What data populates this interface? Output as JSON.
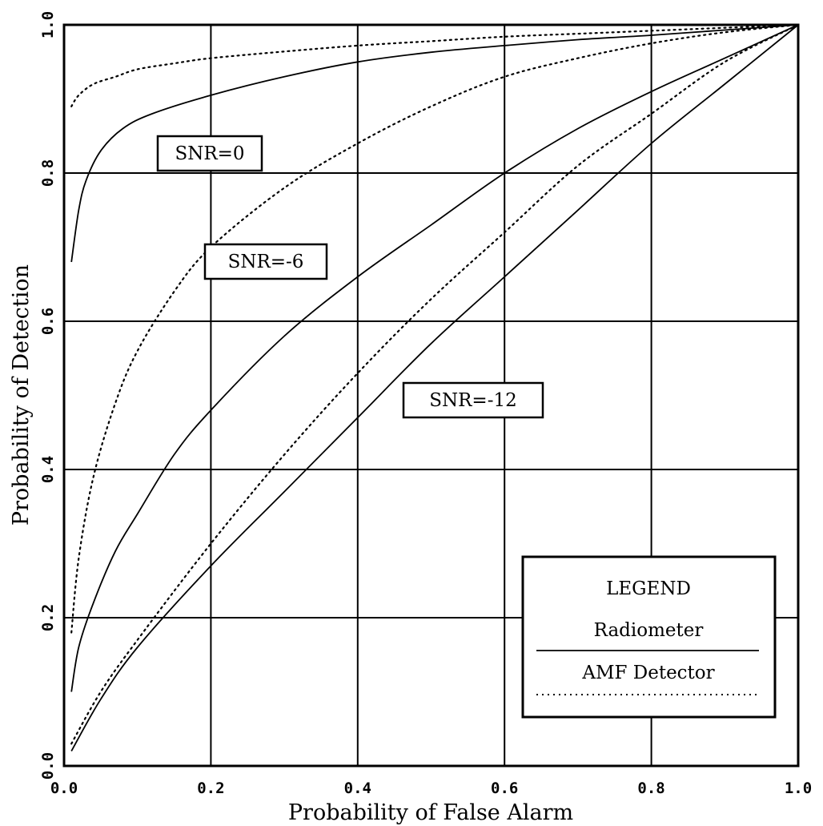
{
  "chart_data": {
    "type": "line",
    "title": "",
    "xlabel": "Probability of False Alarm",
    "ylabel": "Probability of Detection",
    "xlim": [
      0,
      1
    ],
    "ylim": [
      0,
      1
    ],
    "xticks": [
      "0.0",
      "0.2",
      "0.4",
      "0.6",
      "0.8",
      "1.0"
    ],
    "yticks": [
      "0.0",
      "0.2",
      "0.4",
      "0.6",
      "0.8",
      "1.0"
    ],
    "grid": true,
    "legend": {
      "title": "LEGEND",
      "placement": "lower-right",
      "entries": [
        {
          "label": "Radiometer",
          "style": "solid"
        },
        {
          "label": "AMF Detector",
          "style": "dotted"
        }
      ]
    },
    "annotations": [
      "SNR=0",
      "SNR=-6",
      "SNR=-12"
    ],
    "series": [
      {
        "snr": "SNR=0",
        "detector": "Radiometer",
        "style": "solid",
        "x": [
          0.01,
          0.02,
          0.03,
          0.05,
          0.08,
          0.12,
          0.2,
          0.3,
          0.4,
          0.5,
          0.6,
          0.7,
          0.8,
          0.9,
          1.0
        ],
        "y": [
          0.68,
          0.75,
          0.79,
          0.83,
          0.86,
          0.88,
          0.905,
          0.93,
          0.95,
          0.963,
          0.972,
          0.98,
          0.986,
          0.993,
          1.0
        ]
      },
      {
        "snr": "SNR=0",
        "detector": "AMF Detector",
        "style": "dotted",
        "x": [
          0.01,
          0.02,
          0.04,
          0.07,
          0.1,
          0.15,
          0.2,
          0.3,
          0.4,
          0.5,
          0.6,
          0.7,
          0.8,
          0.9,
          1.0
        ],
        "y": [
          0.89,
          0.905,
          0.92,
          0.93,
          0.94,
          0.948,
          0.955,
          0.964,
          0.972,
          0.978,
          0.984,
          0.988,
          0.992,
          0.996,
          1.0
        ]
      },
      {
        "snr": "SNR=-6",
        "detector": "Radiometer",
        "style": "solid",
        "x": [
          0.01,
          0.02,
          0.04,
          0.07,
          0.1,
          0.15,
          0.2,
          0.3,
          0.4,
          0.5,
          0.6,
          0.7,
          0.8,
          0.9,
          1.0
        ],
        "y": [
          0.1,
          0.16,
          0.22,
          0.29,
          0.34,
          0.42,
          0.48,
          0.58,
          0.66,
          0.73,
          0.8,
          0.86,
          0.91,
          0.955,
          1.0
        ]
      },
      {
        "snr": "SNR=-6",
        "detector": "AMF Detector",
        "style": "dotted",
        "x": [
          0.01,
          0.02,
          0.04,
          0.07,
          0.1,
          0.15,
          0.2,
          0.3,
          0.4,
          0.5,
          0.6,
          0.7,
          0.8,
          0.9,
          1.0
        ],
        "y": [
          0.18,
          0.28,
          0.39,
          0.49,
          0.56,
          0.64,
          0.7,
          0.78,
          0.84,
          0.89,
          0.93,
          0.955,
          0.975,
          0.99,
          1.0
        ]
      },
      {
        "snr": "SNR=-12",
        "detector": "Radiometer",
        "style": "solid",
        "x": [
          0.01,
          0.05,
          0.1,
          0.2,
          0.3,
          0.4,
          0.5,
          0.6,
          0.7,
          0.8,
          0.9,
          1.0
        ],
        "y": [
          0.02,
          0.09,
          0.16,
          0.27,
          0.37,
          0.47,
          0.57,
          0.66,
          0.75,
          0.84,
          0.92,
          1.0
        ]
      },
      {
        "snr": "SNR=-12",
        "detector": "AMF Detector",
        "style": "dotted",
        "x": [
          0.01,
          0.05,
          0.1,
          0.2,
          0.3,
          0.4,
          0.5,
          0.6,
          0.7,
          0.8,
          0.9,
          1.0
        ],
        "y": [
          0.03,
          0.1,
          0.17,
          0.3,
          0.42,
          0.53,
          0.63,
          0.72,
          0.81,
          0.88,
          0.95,
          1.0
        ]
      }
    ],
    "colors": {
      "line": "#000000",
      "grid": "#000000",
      "background": "#ffffff"
    }
  }
}
